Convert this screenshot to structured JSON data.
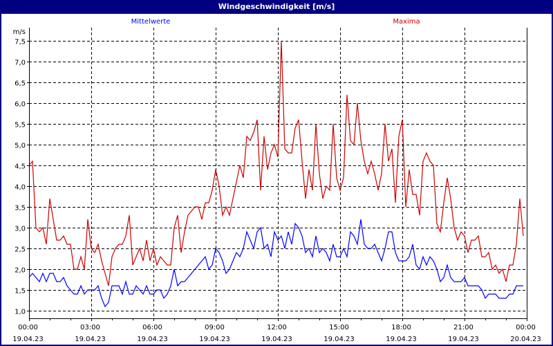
{
  "window": {
    "title": "Windgeschwindigkeit [m/s]"
  },
  "chart_data": {
    "type": "line",
    "title": "Windgeschwindigkeit [m/s]",
    "ylabel": "m/s",
    "ylim": [
      0.8,
      7.85
    ],
    "yticks": [
      1.0,
      1.5,
      2.0,
      2.5,
      3.0,
      3.5,
      4.0,
      4.5,
      5.0,
      5.5,
      6.0,
      6.5,
      7.0,
      7.5
    ],
    "ytick_labels": [
      "1,0",
      "1,5",
      "2,0",
      "2,5",
      "3,0",
      "3,5",
      "4,0",
      "4,5",
      "5,0",
      "5,5",
      "6,0",
      "6,5",
      "7,0",
      "7,5"
    ],
    "xlim_hours": [
      0,
      24
    ],
    "x_interval_minutes": 10,
    "xticks": [
      {
        "hours": 0,
        "time": "00:00",
        "date": "19.04.23"
      },
      {
        "hours": 3,
        "time": "03:00",
        "date": "19.04.23"
      },
      {
        "hours": 6,
        "time": "06:00",
        "date": "19.04.23"
      },
      {
        "hours": 9,
        "time": "09:00",
        "date": "19.04.23"
      },
      {
        "hours": 12,
        "time": "12:00",
        "date": "19.04.23"
      },
      {
        "hours": 15,
        "time": "15:00",
        "date": "19.04.23"
      },
      {
        "hours": 18,
        "time": "18:00",
        "date": "19.04.23"
      },
      {
        "hours": 21,
        "time": "21:00",
        "date": "19.04.23"
      },
      {
        "hours": 24,
        "time": "00:00",
        "date": "20.04.23"
      }
    ],
    "grid": true,
    "series": [
      {
        "name": "Mittelwerte",
        "color": "#0000ff",
        "legend": "top-left",
        "values": [
          1.8,
          1.9,
          1.8,
          1.7,
          1.9,
          1.7,
          1.9,
          1.9,
          1.7,
          1.7,
          1.8,
          1.6,
          1.5,
          1.4,
          1.4,
          1.6,
          1.4,
          1.5,
          1.5,
          1.5,
          1.6,
          1.3,
          1.1,
          1.2,
          1.6,
          1.6,
          1.6,
          1.4,
          1.7,
          1.4,
          1.4,
          1.6,
          1.5,
          1.4,
          1.6,
          1.4,
          1.4,
          1.5,
          1.5,
          1.3,
          1.4,
          1.6,
          2.0,
          1.6,
          1.7,
          1.7,
          1.8,
          1.9,
          2.0,
          2.1,
          2.2,
          2.3,
          2.0,
          2.1,
          2.5,
          2.4,
          2.2,
          1.9,
          2.0,
          2.2,
          2.4,
          2.3,
          2.5,
          2.9,
          2.7,
          2.5,
          2.9,
          3.0,
          2.5,
          2.6,
          2.3,
          2.9,
          2.7,
          2.8,
          2.5,
          2.9,
          2.6,
          3.1,
          3.0,
          2.8,
          2.4,
          2.5,
          2.3,
          2.8,
          2.4,
          2.5,
          2.4,
          2.2,
          2.6,
          2.3,
          2.3,
          2.5,
          2.3,
          2.9,
          2.8,
          2.6,
          3.2,
          2.6,
          2.5,
          2.5,
          2.6,
          2.4,
          2.2,
          2.5,
          2.9,
          2.9,
          2.4,
          2.2,
          2.2,
          2.2,
          2.3,
          2.6,
          2.1,
          2.0,
          2.3,
          2.1,
          2.3,
          2.2,
          2.0,
          1.7,
          1.8,
          2.1,
          1.8,
          1.7,
          1.7,
          1.7,
          1.8,
          1.6,
          1.6,
          1.6,
          1.6,
          1.5,
          1.3,
          1.4,
          1.4,
          1.4,
          1.3,
          1.3,
          1.3,
          1.4,
          1.4,
          1.6,
          1.6,
          1.6
        ]
      },
      {
        "name": "Maxima",
        "color": "#cc0000",
        "legend": "top-right",
        "values": [
          4.5,
          4.6,
          3.0,
          2.9,
          3.0,
          2.6,
          3.7,
          3.2,
          2.7,
          2.7,
          2.8,
          2.6,
          2.6,
          2.0,
          2.0,
          2.3,
          2.0,
          3.2,
          2.5,
          2.4,
          2.6,
          2.2,
          1.9,
          1.6,
          2.3,
          2.5,
          2.6,
          2.6,
          2.8,
          3.3,
          2.1,
          2.3,
          2.5,
          2.2,
          2.7,
          2.2,
          2.5,
          2.1,
          2.3,
          2.2,
          2.1,
          2.1,
          3.0,
          3.3,
          2.4,
          2.9,
          3.3,
          3.4,
          3.5,
          3.5,
          3.2,
          3.6,
          3.6,
          3.9,
          4.4,
          4.0,
          3.3,
          3.5,
          3.3,
          3.7,
          4.1,
          4.5,
          4.2,
          5.2,
          5.1,
          5.3,
          5.6,
          3.9,
          5.2,
          4.4,
          4.8,
          5.0,
          4.7,
          7.5,
          4.9,
          4.8,
          4.8,
          5.4,
          5.6,
          4.6,
          3.7,
          4.4,
          3.9,
          5.5,
          4.3,
          3.7,
          4.0,
          3.9,
          5.5,
          4.2,
          3.9,
          4.2,
          6.2,
          5.1,
          5.0,
          6.0,
          5.1,
          4.6,
          4.3,
          4.6,
          4.3,
          3.9,
          4.3,
          5.5,
          4.6,
          4.9,
          3.6,
          5.2,
          5.6,
          3.5,
          4.4,
          3.8,
          3.8,
          3.3,
          4.6,
          4.8,
          4.6,
          4.5,
          3.1,
          2.9,
          3.6,
          4.2,
          3.7,
          3.0,
          2.7,
          2.9,
          2.8,
          2.4,
          2.7,
          2.7,
          2.8,
          2.3,
          2.3,
          2.4,
          2.0,
          2.1,
          1.9,
          2.0,
          1.7,
          2.1,
          2.1,
          2.6,
          3.7,
          2.8
        ]
      }
    ]
  }
}
